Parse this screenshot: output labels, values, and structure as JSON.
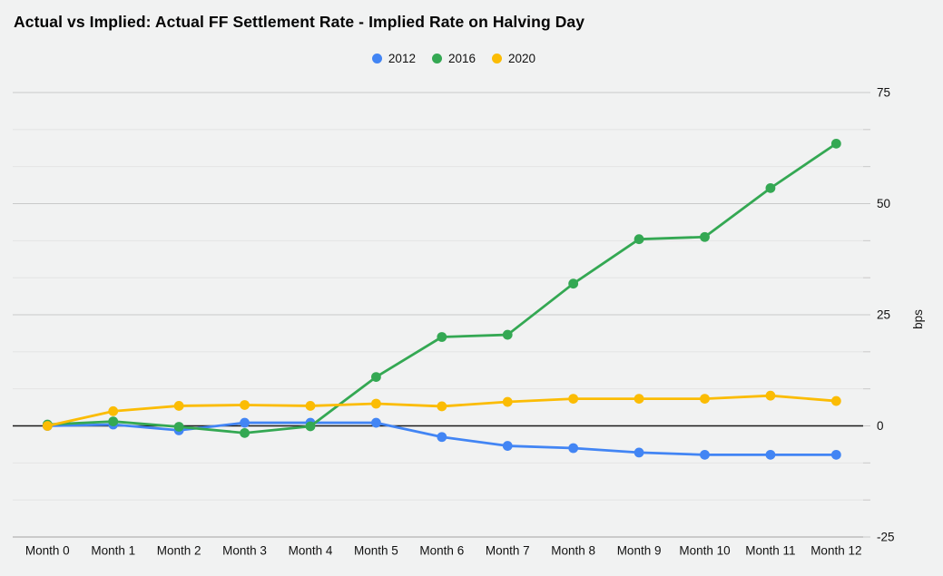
{
  "title": "Actual vs Implied: Actual FF Settlement Rate - Implied Rate on Halving Day",
  "legend": [
    {
      "label": "2012",
      "color": "#4285F4"
    },
    {
      "label": "2016",
      "color": "#34A853"
    },
    {
      "label": "2020",
      "color": "#FBBC04"
    }
  ],
  "chart_data": {
    "type": "line",
    "title": "Actual vs Implied: Actual FF Settlement Rate - Implied Rate on Halving Day",
    "x": [
      "Month 0",
      "Month 1",
      "Month 2",
      "Month 3",
      "Month 4",
      "Month 5",
      "Month 6",
      "Month 7",
      "Month 8",
      "Month 9",
      "Month 10",
      "Month 11",
      "Month 12"
    ],
    "series": [
      {
        "name": "2012",
        "color": "#4285F4",
        "values": [
          0,
          0.3,
          -1,
          0.7,
          0.7,
          0.7,
          -2.5,
          -4.5,
          -5,
          -6,
          -6.5,
          -6.5,
          -6.5
        ]
      },
      {
        "name": "2016",
        "color": "#34A853",
        "values": [
          0.3,
          1,
          -0.2,
          -1.6,
          -0.1,
          11,
          20,
          20.5,
          32,
          42,
          42.5,
          53.5,
          63.5
        ]
      },
      {
        "name": "2020",
        "color": "#FBBC04",
        "values": [
          0,
          3.3,
          4.5,
          4.7,
          4.5,
          5,
          4.4,
          5.4,
          6.1,
          6.1,
          6.1,
          6.8,
          5.6
        ]
      }
    ],
    "xlabel": "",
    "ylabel": "bps",
    "ylim": [
      -25,
      75
    ],
    "yticks": [
      75,
      50,
      25,
      0,
      -25
    ],
    "grid": true,
    "minor_gridlines_per_major": 2,
    "legend_position": "top"
  },
  "colors": {
    "background": "#f1f2f2",
    "major_gridline": "#c9c9c9",
    "minor_gridline": "#e4e4e4",
    "zero_line": "#1a1a1a",
    "bottom_line": "#b3b3b3",
    "tick_text": "#111111"
  }
}
